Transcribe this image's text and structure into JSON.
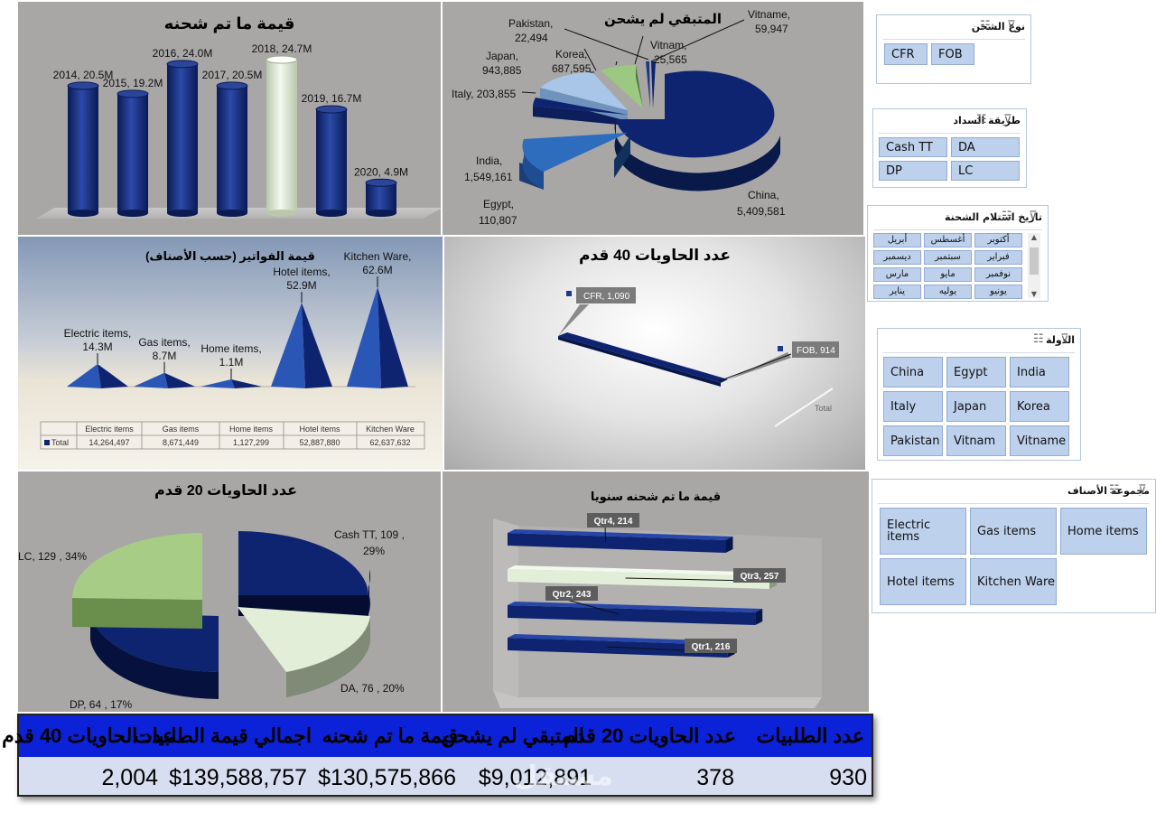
{
  "charts": {
    "shipped_by_year": {
      "title": "قيمة ما تم شحنه",
      "chart_data": {
        "type": "bar",
        "categories": [
          "2014",
          "2015",
          "2016",
          "2017",
          "2018",
          "2019",
          "2020"
        ],
        "values": [
          20.5,
          19.2,
          24.0,
          20.5,
          24.7,
          16.7,
          4.9
        ],
        "labels": [
          "2014, 20.5M",
          "2015, 19.2M",
          "2016, 24.0M",
          "2017, 20.5M",
          "2018, 24.7M",
          "2019, 16.7M",
          "2020, 4.9M"
        ]
      },
      "colors": {
        "bar": "#0e2470",
        "highlight": "#e6f0da"
      }
    },
    "remaining": {
      "title": "المتبقي لم يشحن",
      "chart_data": {
        "type": "pie",
        "labels": [
          "China",
          "Egypt",
          "India",
          "Italy",
          "Japan",
          "Korea",
          "Pakistan",
          "Vitnam",
          "Vitname"
        ],
        "values": [
          5409581,
          110807,
          1549161,
          203855,
          943885,
          687595,
          22494,
          25565,
          59947
        ],
        "label_name": [
          "China,",
          "Egypt,",
          "India,",
          "Italy,  203,855",
          "Japan,",
          "Korea,",
          "Pakistan,",
          "Vitnam,",
          "Vitname,"
        ],
        "label_value": [
          "5,409,581",
          "110,807",
          "1,549,161",
          "",
          "943,885",
          "687,595",
          "22,494",
          "25,565",
          "59,947"
        ]
      }
    },
    "invoices_by_category": {
      "title": "قيمة الفواتير (حسب الأصناف)",
      "chart_data": {
        "type": "bar",
        "categories": [
          "Electric items",
          "Gas items",
          "Home items",
          "Hotel items",
          "Kitchen Ware"
        ],
        "values": [
          14264497,
          8671449,
          1127299,
          52887880,
          62637632
        ],
        "labels_line1": [
          "Electric items,",
          "Gas items,",
          "Home items,",
          "Hotel items,",
          "Kitchen Ware,"
        ],
        "labels_line2": [
          "14.3M",
          "8.7M",
          "1.1M",
          "52.9M",
          "62.6M"
        ]
      },
      "table": {
        "row_label": "Total",
        "values": [
          "14,264,497",
          "8,671,449",
          "1,127,299",
          "52,887,880",
          "62,637,632"
        ]
      }
    },
    "containers40": {
      "title": "عدد الحاويات 40 قدم",
      "chart_data": {
        "type": "line",
        "categories": [
          "CFR",
          "FOB"
        ],
        "values": [
          1090,
          914
        ],
        "labels": [
          "CFR, 1,090",
          "FOB, 914"
        ],
        "series_name": "Total"
      }
    },
    "containers20": {
      "title": "عدد الحاويات 20 قدم",
      "chart_data": {
        "type": "pie",
        "labels": [
          "Cash TT",
          "DA",
          "DP",
          "LC"
        ],
        "values": [
          109,
          76,
          64,
          129
        ],
        "label_a": [
          "Cash TT,  109 ,",
          "DA,  76 , 20%",
          "DP,  64 , 17%",
          "LC,  129 , 34%"
        ],
        "label_b": [
          "29%",
          "",
          "",
          ""
        ]
      },
      "colors": {
        "Cash TT": "#0e2470",
        "DA": "#e3eed8",
        "DP": "#0e2470",
        "LC": "#a7cc86"
      }
    },
    "shipped_by_quarter": {
      "title": "قيمة ما تم شحنه سنويا",
      "chart_data": {
        "type": "bar",
        "categories": [
          "Qtr4",
          "Qtr3",
          "Qtr2",
          "Qtr1"
        ],
        "values": [
          214,
          257,
          243,
          216
        ],
        "labels": [
          "Qtr4, 214",
          "Qtr3, 257",
          "Qtr2, 243",
          "Qtr1, 216"
        ]
      }
    }
  },
  "slicers": {
    "shipping_type": {
      "title": "نوع الشحن",
      "items": [
        "CFR",
        "FOB"
      ]
    },
    "payment_method": {
      "title": "طريقة السداد",
      "items": [
        "Cash TT",
        "DA",
        "DP",
        "LC"
      ]
    },
    "receipt_date": {
      "title": "تاريخ استلام الشحنة",
      "items": [
        "أكتوبر",
        "أغسطس",
        "أبريل",
        "فبراير",
        "سبتمبر",
        "ديسمبر",
        "نوفمبر",
        "مايو",
        "مارس",
        "يونيو",
        "يوليه",
        "يناير"
      ]
    },
    "country": {
      "title": "الدولة",
      "items": [
        "China",
        "Egypt",
        "India",
        "Italy",
        "Japan",
        "Korea",
        "Pakistan",
        "Vitnam",
        "Vitname"
      ]
    },
    "category_group": {
      "title": "مجموعة الأصناف",
      "items": [
        "Electric items",
        "Gas items",
        "Home items",
        "Hotel items",
        "Kitchen Ware"
      ]
    }
  },
  "kpis": [
    {
      "label": "عدد الطلبيات",
      "value": "930"
    },
    {
      "label": "عدد الحاويات 20 قدم",
      "value": "378"
    },
    {
      "label": "المتبقي لم يشحن",
      "value": "$9,012,891"
    },
    {
      "label": "قيمة ما تم شحنه",
      "value": "$130,575,866"
    },
    {
      "label": "اجمالي قيمة الطلبيات",
      "value": "$139,588,757"
    },
    {
      "label": "عدد الحاويات 40 قدم",
      "value": "2,004"
    }
  ],
  "watermark": "مستقل mostaql.com"
}
